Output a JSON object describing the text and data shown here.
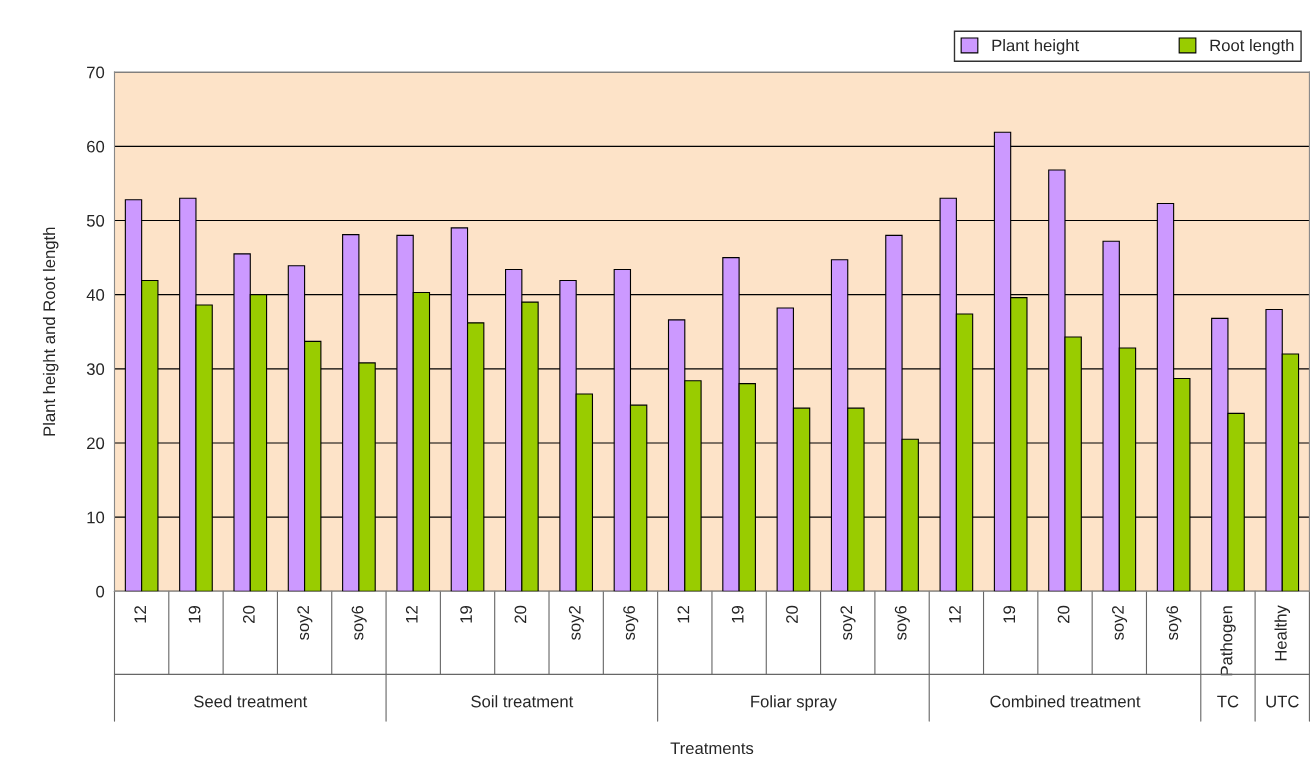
{
  "chart_data": {
    "type": "bar",
    "categories": [
      "12",
      "19",
      "20",
      "soy2",
      "soy6",
      "12",
      "19",
      "20",
      "soy2",
      "soy6",
      "12",
      "19",
      "20",
      "soy2",
      "soy6",
      "12",
      "19",
      "20",
      "soy2",
      "soy6",
      "Pathogen",
      "Healthy"
    ],
    "series": [
      {
        "name": "Plant height",
        "color": "#cc99ff",
        "values": [
          52.8,
          53,
          45.5,
          43.9,
          48.1,
          48,
          49,
          43.4,
          41.9,
          43.4,
          36.6,
          45,
          38.2,
          44.7,
          48,
          53,
          61.9,
          56.8,
          47.2,
          52.3,
          36.8,
          38
        ]
      },
      {
        "name": "Root length",
        "color": "#99cc00",
        "values": [
          41.9,
          38.6,
          40,
          33.7,
          30.8,
          40.3,
          36.2,
          39,
          26.6,
          25.1,
          28.4,
          28,
          24.7,
          24.7,
          20.5,
          37.4,
          39.6,
          34.3,
          32.8,
          28.7,
          24,
          32
        ]
      }
    ],
    "xlabel": "Treatments",
    "ylabel": "Plant height and Root length",
    "annotations": [
      "Seed treatment",
      "Soil treatment",
      "Foliar spray",
      "Combined treatment",
      "TC",
      "UTC"
    ],
    "ylim": [
      0,
      70
    ],
    "yticks": [
      0,
      10,
      20,
      30,
      40,
      50,
      60,
      70
    ],
    "grid": "y",
    "legend": "top right"
  }
}
